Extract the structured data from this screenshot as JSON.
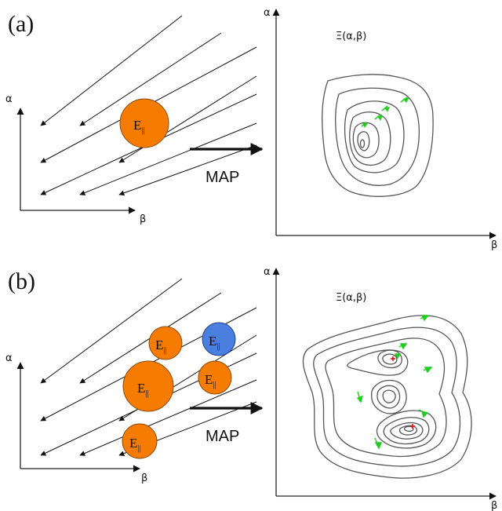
{
  "panel_a": {
    "label": "(a)",
    "left_axes": {
      "y_label": "α",
      "x_label": "β"
    },
    "blobs": [
      {
        "text": "E",
        "sub": "||",
        "color": "#f57c00"
      }
    ],
    "map_label": "MAP",
    "right_axes": {
      "y_label": "α",
      "x_label": "β",
      "function_label": "Ξ(α,β)"
    }
  },
  "panel_b": {
    "label": "(b)",
    "left_axes": {
      "y_label": "α",
      "x_label": "β"
    },
    "blobs": [
      {
        "text": "E",
        "sub": "||",
        "color": "#f57c00"
      },
      {
        "text": "E",
        "sub": "||",
        "color": "#4a7fe0"
      },
      {
        "text": "E",
        "sub": "||",
        "color": "#f57c00"
      },
      {
        "text": "E",
        "sub": "||",
        "color": "#f57c00"
      },
      {
        "text": "E",
        "sub": "||",
        "color": "#f57c00"
      }
    ],
    "map_label": "MAP",
    "right_axes": {
      "y_label": "α",
      "x_label": "β",
      "function_label": "Ξ(α,β)"
    }
  },
  "colors": {
    "orange": "#f57c00",
    "blue": "#4a7fe0",
    "green_arrow": "#22cc22",
    "minimum_marker": "#e01010"
  }
}
